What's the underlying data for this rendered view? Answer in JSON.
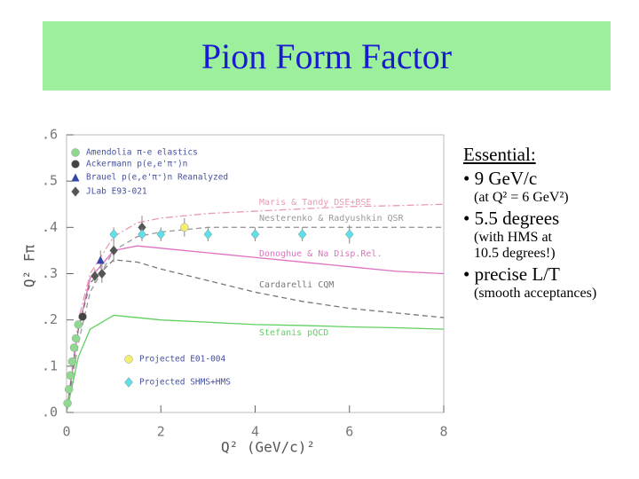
{
  "slide": {
    "title": "Pion Form Factor",
    "notes": [
      "Essential:",
      "• 9 GeV/c",
      "(at Q² = 6 GeV²)",
      "• 5.5 degrees",
      "(with HMS at",
      "10.5 degrees!)",
      "• precise L/T",
      "(smooth acceptances)"
    ]
  },
  "chart_data": {
    "type": "mixed",
    "xlabel": "Q² (GeV/c)²",
    "ylabel": "Q² Fπ",
    "xlim": [
      0,
      8
    ],
    "xticks": [
      0,
      2,
      4,
      6,
      8
    ],
    "ylim": [
      0,
      0.6
    ],
    "yticks": [
      {
        "value": 0,
        "label": ".0"
      },
      {
        "value": 0.1,
        "label": ".1"
      },
      {
        "value": 0.2,
        "label": ".2"
      },
      {
        "value": 0.3,
        "label": ".3"
      },
      {
        "value": 0.4,
        "label": ".4"
      },
      {
        "value": 0.5,
        "label": ".5"
      },
      {
        "value": 0.6,
        "label": ".6"
      }
    ],
    "series": [
      {
        "name": "Amendolia π-e elastics",
        "type": "scatter",
        "marker": "circle",
        "color": "#8fd88f",
        "x": [
          0.02,
          0.05,
          0.08,
          0.12,
          0.16,
          0.2,
          0.25
        ],
        "values": [
          0.02,
          0.05,
          0.08,
          0.11,
          0.14,
          0.16,
          0.19
        ]
      },
      {
        "name": "Ackermann p(e,e'π⁺)n",
        "type": "scatter",
        "marker": "circle",
        "color": "#444444",
        "x": [
          0.34
        ],
        "values": [
          0.207
        ]
      },
      {
        "name": "Brauel p(e,e'π⁺)n Reanalyzed",
        "type": "scatter",
        "marker": "triangle",
        "color": "#3344aa",
        "x": [
          0.72
        ],
        "values": [
          0.33
        ],
        "errors": [
          0.02
        ]
      },
      {
        "name": "JLab E93-021",
        "type": "scatter",
        "marker": "diamond",
        "color": "#555555",
        "x": [
          0.6,
          0.75,
          1.0,
          1.6
        ],
        "values": [
          0.295,
          0.3,
          0.35,
          0.4
        ],
        "errors": [
          0.015,
          0.02,
          0.025,
          0.025
        ]
      },
      {
        "name": "Projected E01-004",
        "type": "scatter",
        "marker": "circle",
        "color": "#f2ee70",
        "x": [
          2.5
        ],
        "values": [
          0.4
        ],
        "errors": [
          0.02
        ]
      },
      {
        "name": "Projected SHMS+HMS",
        "type": "scatter",
        "marker": "diamond",
        "color": "#5ee0e8",
        "x": [
          1.0,
          1.6,
          2.0,
          3.0,
          4.0,
          5.0,
          6.0
        ],
        "values": [
          0.385,
          0.385,
          0.385,
          0.385,
          0.385,
          0.385,
          0.385
        ],
        "errors": [
          0.015,
          0.015,
          0.015,
          0.015,
          0.015,
          0.015,
          0.02
        ]
      },
      {
        "name": "Maris & Tandy DSE+BSE",
        "type": "line",
        "dash": "8 3 2 3",
        "color": "#e89ab0",
        "x": [
          0,
          0.25,
          0.5,
          1,
          1.5,
          2,
          3,
          4,
          5,
          6,
          7,
          8
        ],
        "values": [
          0,
          0.2,
          0.3,
          0.38,
          0.41,
          0.42,
          0.43,
          0.435,
          0.44,
          0.445,
          0.447,
          0.45
        ]
      },
      {
        "name": "Nesterenko & Radyushkin QSR",
        "type": "line",
        "dash": "6 4",
        "color": "#999999",
        "x": [
          0,
          0.25,
          0.5,
          1,
          1.5,
          2,
          3,
          4,
          5,
          6,
          7,
          8
        ],
        "values": [
          0,
          0.15,
          0.26,
          0.35,
          0.38,
          0.39,
          0.4,
          0.4,
          0.4,
          0.4,
          0.4,
          0.4
        ]
      },
      {
        "name": "Donoghue & Na Disp.Rel.",
        "type": "line",
        "dash": "",
        "color": "#e070c0",
        "x": [
          0,
          0.25,
          0.5,
          1,
          1.5,
          2,
          3,
          4,
          5,
          6,
          7,
          8
        ],
        "values": [
          0,
          0.18,
          0.29,
          0.35,
          0.36,
          0.355,
          0.345,
          0.335,
          0.325,
          0.315,
          0.305,
          0.3
        ]
      },
      {
        "name": "Cardarelli CQM",
        "type": "line",
        "dash": "6 4",
        "color": "#777777",
        "x": [
          0,
          0.25,
          0.5,
          1,
          1.5,
          2,
          3,
          4,
          5,
          6,
          7,
          8
        ],
        "values": [
          0,
          0.18,
          0.28,
          0.33,
          0.325,
          0.31,
          0.285,
          0.26,
          0.24,
          0.225,
          0.215,
          0.205
        ]
      },
      {
        "name": "Stefanis pQCD",
        "type": "line",
        "dash": "",
        "color": "#60d060",
        "x": [
          0,
          0.25,
          0.5,
          1,
          1.5,
          2,
          3,
          4,
          5,
          6,
          7,
          8
        ],
        "values": [
          0,
          0.12,
          0.18,
          0.21,
          0.205,
          0.2,
          0.195,
          0.19,
          0.188,
          0.185,
          0.183,
          0.18
        ]
      }
    ]
  }
}
